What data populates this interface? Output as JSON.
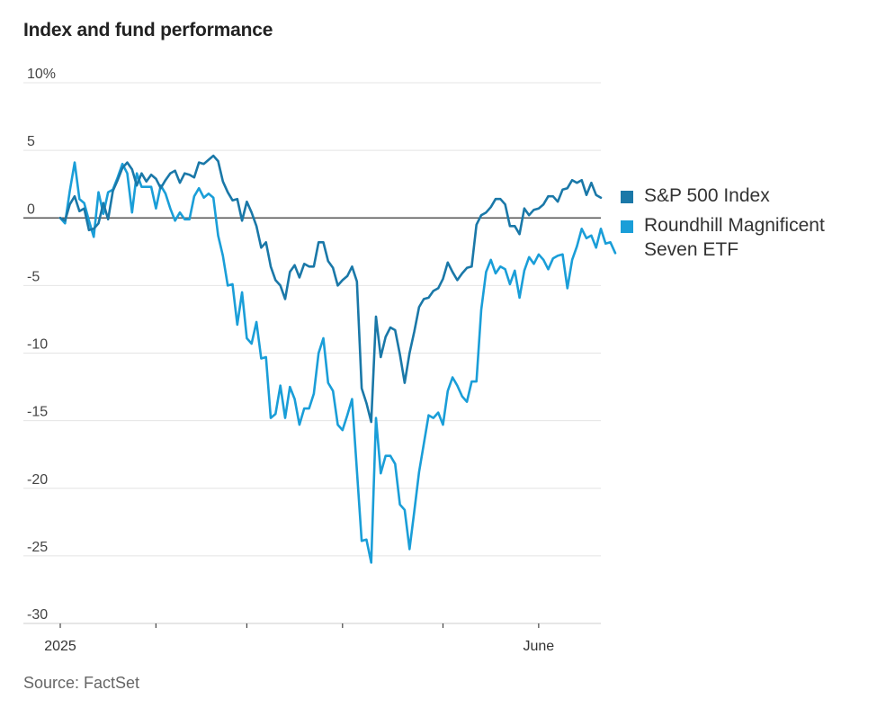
{
  "header": {
    "title": "Index and fund performance"
  },
  "footer": {
    "source": "Source: FactSet"
  },
  "colors": {
    "sp500": "#1a78a8",
    "roundhill": "#1a9ed8",
    "grid": "#e4e4e4",
    "zero": "#555555"
  },
  "chart_data": {
    "type": "line",
    "title": "Index and fund performance",
    "ylabel": "",
    "xlabel": "",
    "ylim": [
      -30,
      10
    ],
    "yticks": [
      10,
      5,
      0,
      -5,
      -10,
      -15,
      -20,
      -25,
      -30
    ],
    "ytick_labels": [
      "10%",
      "5",
      "0",
      "-5",
      "-10",
      "-15",
      "-20",
      "-25",
      "-30"
    ],
    "x_range": [
      0,
      113
    ],
    "xticks": [
      0,
      20,
      39,
      59,
      80,
      100
    ],
    "xtick_labels": [
      "2025",
      "",
      "",
      "",
      "",
      "June"
    ],
    "legend_position": "right",
    "series": [
      {
        "name": "S&P 500 Index",
        "color": "#1a78a8",
        "values": [
          0,
          -0.2,
          1.0,
          1.6,
          0.5,
          0.7,
          -0.9,
          -0.8,
          -0.4,
          1.1,
          -0.1,
          2.0,
          2.8,
          3.7,
          4.1,
          3.6,
          2.4,
          3.3,
          2.7,
          3.2,
          2.9,
          2.2,
          2.8,
          3.3,
          3.5,
          2.6,
          3.3,
          3.2,
          3.0,
          4.1,
          4.0,
          4.3,
          4.6,
          4.2,
          2.7,
          1.9,
          1.3,
          1.4,
          -0.2,
          1.2,
          0.4,
          -0.6,
          -2.2,
          -1.8,
          -3.6,
          -4.6,
          -5.0,
          -6.0,
          -4.0,
          -3.5,
          -4.4,
          -3.4,
          -3.6,
          -3.6,
          -1.8,
          -1.8,
          -3.2,
          -3.7,
          -5.0,
          -4.6,
          -4.3,
          -3.6,
          -4.7,
          -12.6,
          -13.7,
          -15.1,
          -7.3,
          -10.3,
          -8.8,
          -8.1,
          -8.3,
          -10.1,
          -12.2,
          -10.0,
          -8.4,
          -6.6,
          -6.0,
          -5.9,
          -5.4,
          -5.2,
          -4.5,
          -3.3,
          -4.0,
          -4.6,
          -4.1,
          -3.7,
          -3.6,
          -0.5,
          0.2,
          0.4,
          0.8,
          1.4,
          1.4,
          1.0,
          -0.6,
          -0.6,
          -1.2,
          0.7,
          0.2,
          0.6,
          0.7,
          1.0,
          1.6,
          1.6,
          1.2,
          2.1,
          2.2,
          2.8,
          2.6,
          2.8,
          1.7,
          2.6,
          1.7,
          1.5
        ]
      },
      {
        "name": "Roundhill Magnificent Seven ETF",
        "color": "#1a9ed8",
        "values": [
          0,
          -0.4,
          2.0,
          4.1,
          1.4,
          1.1,
          -0.2,
          -1.4,
          1.9,
          0.3,
          1.9,
          2.1,
          3.0,
          4.0,
          3.3,
          0.4,
          3.3,
          2.3,
          2.3,
          2.3,
          0.7,
          2.4,
          1.8,
          0.7,
          -0.2,
          0.4,
          -0.1,
          -0.1,
          1.6,
          2.2,
          1.5,
          1.8,
          1.5,
          -1.3,
          -2.8,
          -5.0,
          -4.9,
          -7.9,
          -5.5,
          -8.9,
          -9.3,
          -7.7,
          -10.4,
          -10.3,
          -14.8,
          -14.5,
          -12.4,
          -14.8,
          -12.5,
          -13.4,
          -15.3,
          -14.1,
          -14.1,
          -13.0,
          -10.0,
          -8.9,
          -12.2,
          -12.8,
          -15.3,
          -15.7,
          -14.6,
          -13.4,
          -18.7,
          -23.9,
          -23.8,
          -25.5,
          -14.8,
          -18.9,
          -17.6,
          -17.6,
          -18.2,
          -21.2,
          -21.6,
          -24.5,
          -21.7,
          -18.8,
          -16.7,
          -14.6,
          -14.8,
          -14.4,
          -15.3,
          -12.8,
          -11.8,
          -12.4,
          -13.2,
          -13.6,
          -12.1,
          -12.1,
          -6.8,
          -4.0,
          -3.1,
          -4.1,
          -3.6,
          -3.8,
          -4.9,
          -3.9,
          -5.9,
          -3.9,
          -2.9,
          -3.4,
          -2.7,
          -3.1,
          -3.8,
          -3.0,
          -2.8,
          -2.7,
          -5.2,
          -3.1,
          -2.1,
          -0.8,
          -1.5,
          -1.3,
          -2.2,
          -0.8,
          -1.9,
          -1.8,
          -2.6
        ]
      }
    ]
  }
}
